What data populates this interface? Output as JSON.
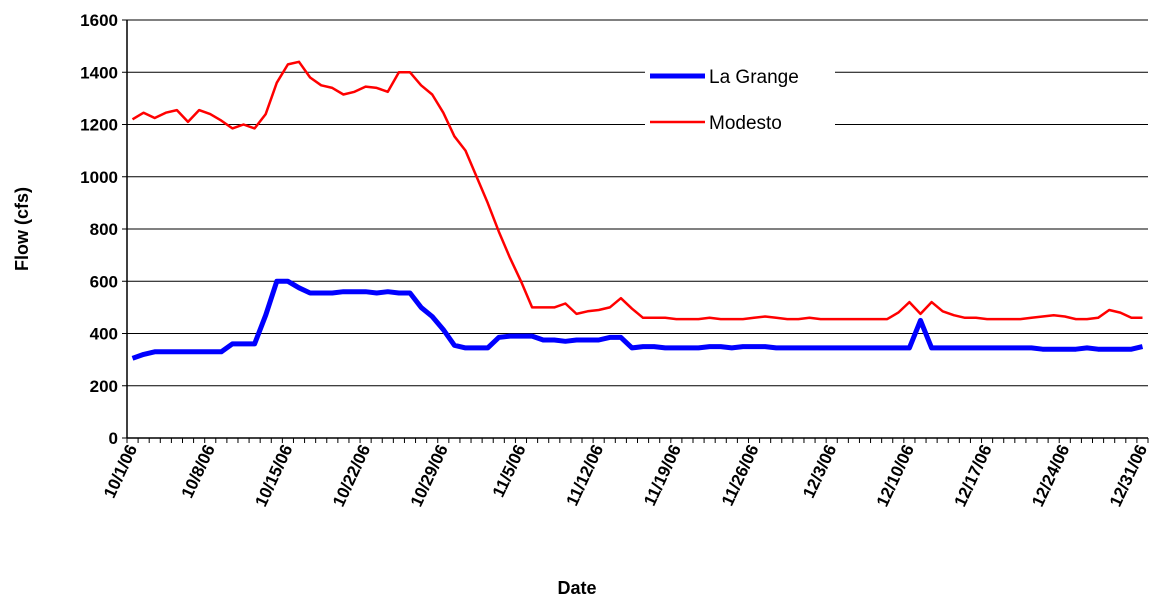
{
  "chart_data": {
    "type": "line",
    "x_label": "Date",
    "y_label": "Flow (cfs)",
    "x": [
      "10/1/06",
      null,
      null,
      null,
      null,
      null,
      null,
      "10/8/06",
      null,
      null,
      null,
      null,
      null,
      null,
      "10/15/06",
      null,
      null,
      null,
      null,
      null,
      null,
      "10/22/06",
      null,
      null,
      null,
      null,
      null,
      null,
      "10/29/06",
      null,
      null,
      null,
      null,
      null,
      null,
      "11/5/06",
      null,
      null,
      null,
      null,
      null,
      null,
      "11/12/06",
      null,
      null,
      null,
      null,
      null,
      null,
      "11/19/06",
      null,
      null,
      null,
      null,
      null,
      null,
      "11/26/06",
      null,
      null,
      null,
      null,
      null,
      null,
      "12/3/06",
      null,
      null,
      null,
      null,
      null,
      null,
      "12/10/06",
      null,
      null,
      null,
      null,
      null,
      null,
      "12/17/06",
      null,
      null,
      null,
      null,
      null,
      null,
      "12/24/06",
      null,
      null,
      null,
      null,
      null,
      null,
      "12/31/06"
    ],
    "series": [
      {
        "name": "La Grange",
        "color": "#0000ff",
        "width": 5,
        "values": [
          305,
          320,
          330,
          330,
          330,
          330,
          330,
          330,
          330,
          360,
          360,
          360,
          470,
          600,
          600,
          575,
          555,
          555,
          555,
          560,
          560,
          560,
          555,
          560,
          555,
          555,
          500,
          465,
          415,
          355,
          345,
          345,
          345,
          385,
          390,
          390,
          390,
          375,
          375,
          370,
          375,
          375,
          375,
          385,
          385,
          345,
          350,
          350,
          345,
          345,
          345,
          345,
          350,
          350,
          345,
          350,
          350,
          350,
          345,
          345,
          345,
          345,
          345,
          345,
          345,
          345,
          345,
          345,
          345,
          345,
          345,
          450,
          345,
          345,
          345,
          345,
          345,
          345,
          345,
          345,
          345,
          345,
          340,
          340,
          340,
          340,
          345,
          340,
          340,
          340,
          340,
          350
        ]
      },
      {
        "name": "Modesto",
        "color": "#ff0000",
        "width": 2.5,
        "values": [
          1220,
          1245,
          1225,
          1245,
          1255,
          1210,
          1255,
          1240,
          1215,
          1185,
          1200,
          1185,
          1240,
          1360,
          1430,
          1440,
          1380,
          1350,
          1340,
          1315,
          1325,
          1345,
          1340,
          1325,
          1400,
          1400,
          1350,
          1315,
          1245,
          1155,
          1100,
          1000,
          900,
          790,
          690,
          600,
          500,
          500,
          500,
          515,
          475,
          485,
          490,
          500,
          535,
          495,
          460,
          460,
          460,
          455,
          455,
          455,
          460,
          455,
          455,
          455,
          460,
          465,
          460,
          455,
          455,
          460,
          455,
          455,
          455,
          455,
          455,
          455,
          455,
          480,
          520,
          475,
          520,
          485,
          470,
          460,
          460,
          455,
          455,
          455,
          455,
          460,
          465,
          470,
          465,
          455,
          455,
          460,
          490,
          480,
          460,
          460
        ]
      }
    ],
    "ylim": [
      0,
      1600
    ],
    "yticks": [
      0,
      200,
      400,
      600,
      800,
      1000,
      1200,
      1400,
      1600
    ],
    "grid": true
  }
}
